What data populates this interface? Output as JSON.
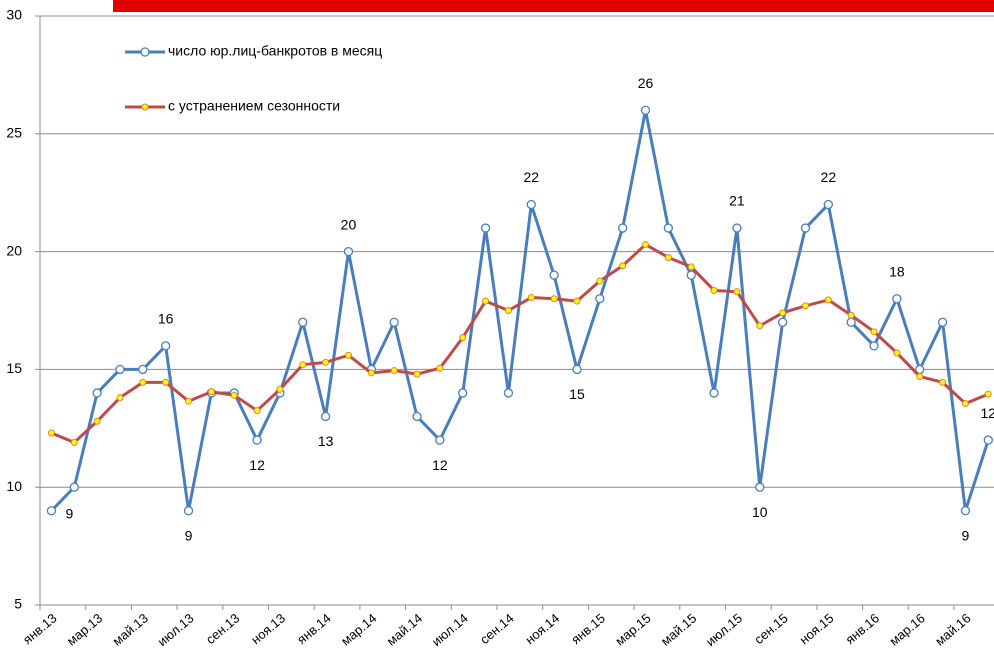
{
  "chart_data": {
    "type": "line",
    "categories": [
      "янв.13",
      null,
      "мар.13",
      null,
      "май.13",
      null,
      "июл.13",
      null,
      "сен.13",
      null,
      "ноя.13",
      null,
      "янв.14",
      null,
      "мар.14",
      null,
      "май.14",
      null,
      "июл.14",
      null,
      "сен.14",
      null,
      "ноя.14",
      null,
      "янв.15",
      null,
      "мар.15",
      null,
      "май.15",
      null,
      "июл.15",
      null,
      "сен.15",
      null,
      "ноя.15",
      null,
      "янв.16",
      null,
      "мар.16",
      null,
      "май.16",
      null
    ],
    "series": [
      {
        "name": "число юр.лиц-банкротов в месяц",
        "color": "#4a7ebb",
        "values": [
          9,
          10,
          14,
          15,
          15,
          16,
          9,
          14,
          14,
          12,
          14,
          17,
          13,
          20,
          15,
          17,
          13,
          12,
          14,
          21,
          14,
          22,
          19,
          15,
          18,
          21,
          26,
          21,
          19,
          14,
          21,
          10,
          17,
          21,
          22,
          17,
          16,
          18,
          15,
          17,
          9,
          12
        ],
        "value_labels": [
          "9",
          null,
          null,
          null,
          null,
          "16",
          "9",
          null,
          null,
          "12",
          null,
          null,
          "13",
          "20",
          null,
          null,
          null,
          "12",
          null,
          null,
          null,
          "22",
          null,
          "15",
          null,
          null,
          "26",
          null,
          null,
          null,
          "21",
          "10",
          null,
          null,
          "22",
          null,
          null,
          "18",
          null,
          null,
          "9",
          "12"
        ]
      },
      {
        "name": "с устранением сезонности",
        "color": "#be4b48",
        "values": [
          12.3,
          11.9,
          12.8,
          13.8,
          14.45,
          14.45,
          13.65,
          14.05,
          13.9,
          13.25,
          14.15,
          15.2,
          15.3,
          15.6,
          14.85,
          14.95,
          14.8,
          15.05,
          16.35,
          17.9,
          17.5,
          18.05,
          18.0,
          17.9,
          18.75,
          19.4,
          20.3,
          19.75,
          19.35,
          18.35,
          18.3,
          16.85,
          17.4,
          17.7,
          17.95,
          17.3,
          16.6,
          15.7,
          14.7,
          14.45,
          13.55,
          13.95
        ]
      }
    ],
    "ylim": [
      5,
      30
    ],
    "yticks": [
      5,
      10,
      15,
      20,
      25,
      30
    ],
    "grid": true
  }
}
